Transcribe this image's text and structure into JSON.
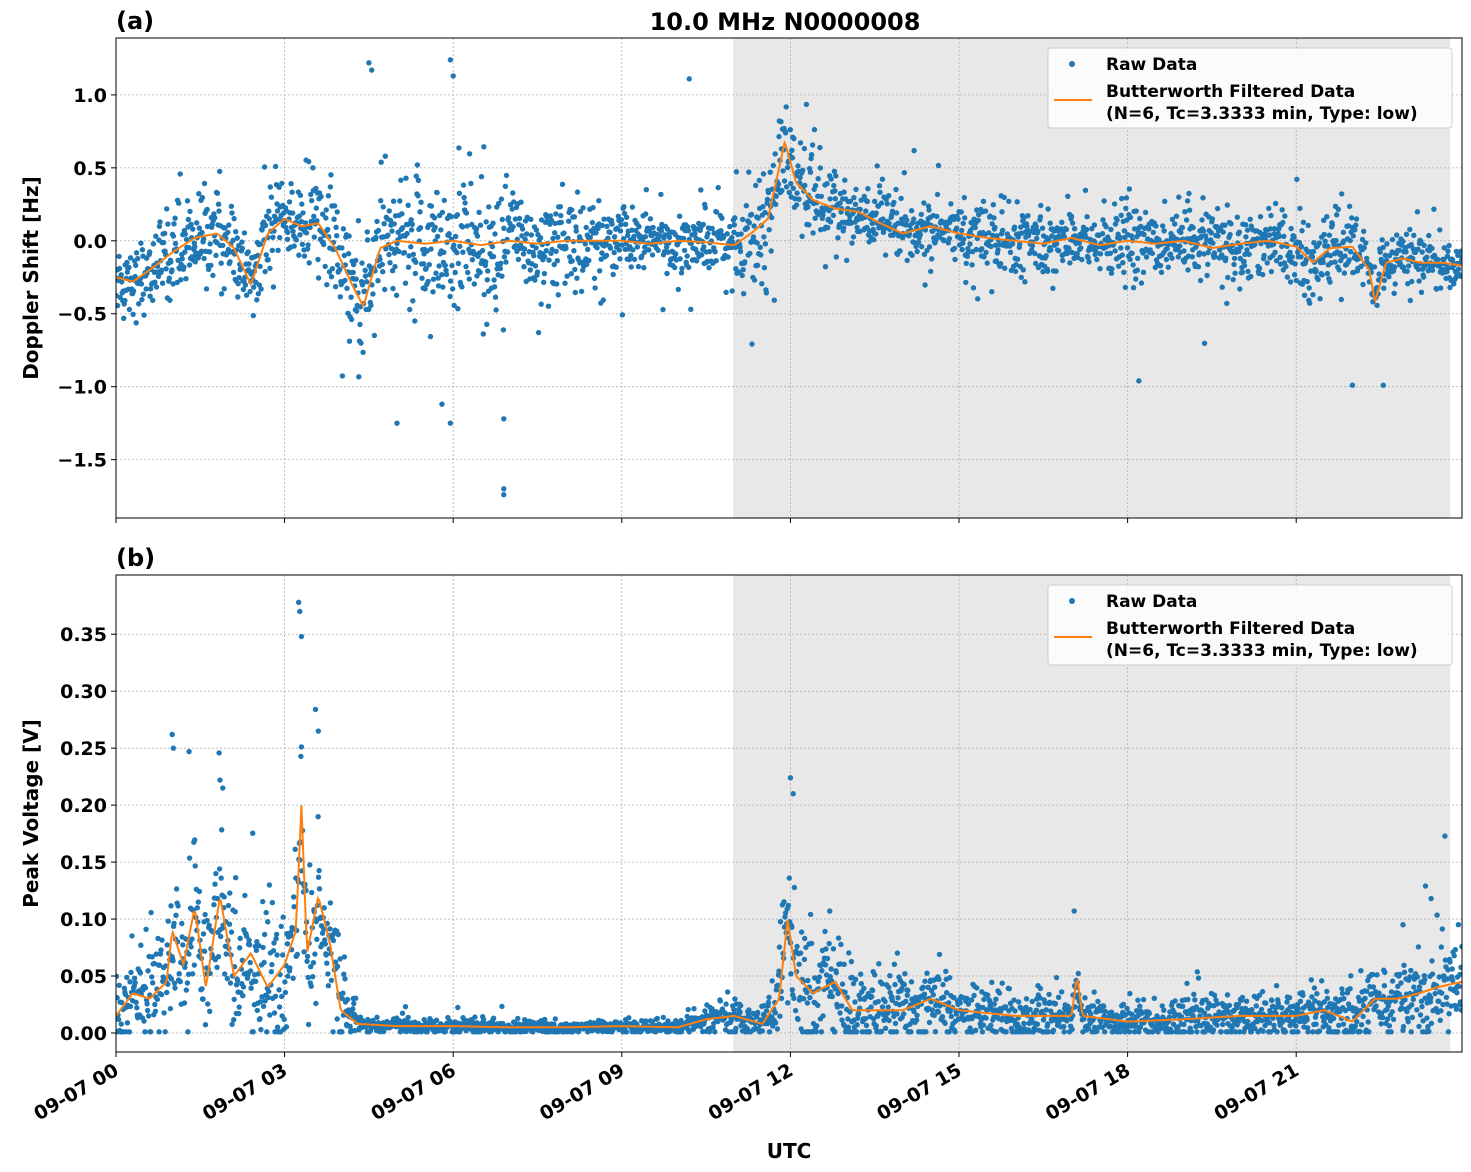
{
  "title": "10.0 MHz N0000008",
  "xlabel": "UTC",
  "x_ticks": [
    "09-07 00",
    "09-07 03",
    "09-07 06",
    "09-07 09",
    "09-07 12",
    "09-07 15",
    "09-07 18",
    "09-07 21"
  ],
  "x_tick_hours": [
    0,
    3,
    6,
    9,
    12,
    15,
    18,
    21
  ],
  "xlim_hours": [
    0,
    23.95
  ],
  "shaded_region_hours": [
    10.98,
    23.74
  ],
  "colors": {
    "raw": "#1f77b4",
    "filtered": "#ff7f0e",
    "shade": "#e8e8e8"
  },
  "chart_data": [
    {
      "type": "scatter",
      "panel_label": "(a)",
      "ylabel": "Doppler Shift [Hz]",
      "ylim": [
        -1.9,
        1.39
      ],
      "y_ticks": [
        1.0,
        0.5,
        0.0,
        -0.5,
        -1.0,
        -1.5
      ],
      "y_tick_labels": [
        "1.0",
        "0.5",
        "0.0",
        "−0.5",
        "−1.0",
        "−1.5"
      ],
      "grid": true,
      "legend": {
        "placement": "top-right",
        "entries": [
          "Raw Data",
          "Butterworth Filtered Data",
          "(N=6, Tc=3.3333 min, Type: low)"
        ]
      },
      "filtered": {
        "name": "Butterworth Filtered Data",
        "x": [
          0,
          0.3,
          0.6,
          1,
          1.4,
          1.8,
          2.1,
          2.4,
          2.7,
          3,
          3.3,
          3.6,
          3.9,
          4.2,
          4.4,
          4.7,
          5,
          5.5,
          6,
          6.5,
          7,
          7.5,
          8,
          8.5,
          9,
          9.5,
          10,
          10.5,
          11,
          11.3,
          11.6,
          11.8,
          11.9,
          12.1,
          12.4,
          12.8,
          13.2,
          13.6,
          14,
          14.5,
          15,
          15.5,
          16,
          16.5,
          17,
          17.5,
          18,
          18.5,
          19,
          19.5,
          20,
          20.5,
          21,
          21.3,
          21.6,
          22,
          22.3,
          22.4,
          22.6,
          22.9,
          23.2,
          23.6,
          23.95
        ],
        "y": [
          -0.25,
          -0.28,
          -0.2,
          -0.08,
          0.02,
          0.05,
          -0.05,
          -0.3,
          0.05,
          0.15,
          0.1,
          0.12,
          -0.05,
          -0.3,
          -0.45,
          -0.05,
          0.0,
          -0.02,
          0.0,
          -0.03,
          0.0,
          -0.02,
          0.0,
          0.0,
          0.0,
          -0.02,
          0.0,
          -0.01,
          -0.03,
          0.05,
          0.15,
          0.5,
          0.68,
          0.4,
          0.28,
          0.22,
          0.2,
          0.12,
          0.05,
          0.1,
          0.05,
          0.02,
          0.0,
          -0.02,
          0.02,
          -0.03,
          0.0,
          -0.02,
          0.0,
          -0.05,
          -0.02,
          0.0,
          -0.04,
          -0.15,
          -0.05,
          -0.04,
          -0.2,
          -0.42,
          -0.15,
          -0.12,
          -0.15,
          -0.15,
          -0.17
        ]
      },
      "raw_spread": {
        "x": [
          0,
          2,
          3,
          3.8,
          4.5,
          6,
          7,
          8,
          9,
          10,
          10.8,
          11.5,
          12,
          13,
          15,
          18,
          20,
          22,
          23,
          23.95
        ],
        "sd": [
          0.12,
          0.14,
          0.1,
          0.18,
          0.22,
          0.22,
          0.22,
          0.16,
          0.1,
          0.1,
          0.12,
          0.2,
          0.16,
          0.12,
          0.1,
          0.12,
          0.11,
          0.12,
          0.09,
          0.07
        ]
      },
      "raw_outliers": [
        [
          4.5,
          1.22
        ],
        [
          4.55,
          1.17
        ],
        [
          5.0,
          -1.25
        ],
        [
          5.95,
          1.24
        ],
        [
          5.95,
          -1.25
        ],
        [
          6.0,
          1.13
        ],
        [
          6.9,
          -1.7
        ],
        [
          6.9,
          -1.74
        ],
        [
          6.9,
          -1.22
        ],
        [
          10.2,
          1.11
        ],
        [
          5.8,
          -1.12
        ],
        [
          18.2,
          -0.96
        ],
        [
          22.0,
          -0.99
        ],
        [
          22.55,
          -0.99
        ]
      ]
    },
    {
      "type": "scatter",
      "panel_label": "(b)",
      "ylabel": "Peak Voltage [V]",
      "ylim": [
        -0.0167,
        0.402
      ],
      "y_ticks": [
        0.0,
        0.05,
        0.1,
        0.15,
        0.2,
        0.25,
        0.3,
        0.35
      ],
      "y_tick_labels": [
        "0.00",
        "0.05",
        "0.10",
        "0.15",
        "0.20",
        "0.25",
        "0.30",
        "0.35"
      ],
      "grid": true,
      "legend": {
        "placement": "top-right",
        "entries": [
          "Raw Data",
          "Butterworth Filtered Data",
          "(N=6, Tc=3.3333 min, Type: low)"
        ]
      },
      "filtered": {
        "name": "Butterworth Filtered Data",
        "x": [
          0,
          0.3,
          0.6,
          0.9,
          1.0,
          1.2,
          1.4,
          1.6,
          1.85,
          2.1,
          2.4,
          2.7,
          3.0,
          3.2,
          3.3,
          3.4,
          3.6,
          3.8,
          4.0,
          4.3,
          5,
          6,
          7,
          8,
          9,
          10,
          10.5,
          11,
          11.5,
          11.8,
          11.95,
          12.1,
          12.4,
          12.8,
          13.1,
          13.5,
          14,
          14.5,
          15,
          16,
          17,
          17.1,
          17.2,
          18,
          19,
          20,
          21,
          21.5,
          22,
          22.4,
          22.8,
          23.2,
          23.5,
          23.95
        ],
        "y": [
          0.015,
          0.035,
          0.03,
          0.045,
          0.09,
          0.06,
          0.11,
          0.04,
          0.12,
          0.05,
          0.07,
          0.04,
          0.06,
          0.09,
          0.2,
          0.07,
          0.12,
          0.08,
          0.02,
          0.008,
          0.006,
          0.006,
          0.005,
          0.005,
          0.006,
          0.005,
          0.012,
          0.015,
          0.008,
          0.03,
          0.1,
          0.05,
          0.035,
          0.045,
          0.02,
          0.02,
          0.02,
          0.03,
          0.02,
          0.015,
          0.015,
          0.05,
          0.015,
          0.01,
          0.012,
          0.015,
          0.015,
          0.02,
          0.01,
          0.03,
          0.03,
          0.035,
          0.04,
          0.045
        ]
      },
      "raw_spread": {
        "x": [
          0,
          3,
          4,
          4.3,
          10,
          11,
          11.5,
          12,
          13,
          15,
          18,
          22,
          23.95
        ],
        "sd": [
          0.02,
          0.035,
          0.02,
          0.003,
          0.003,
          0.008,
          0.005,
          0.03,
          0.02,
          0.012,
          0.008,
          0.012,
          0.02
        ]
      },
      "raw_outliers": [
        [
          1.0,
          0.262
        ],
        [
          1.02,
          0.25
        ],
        [
          1.3,
          0.247
        ],
        [
          1.85,
          0.222
        ],
        [
          1.9,
          0.215
        ],
        [
          3.25,
          0.378
        ],
        [
          3.27,
          0.37
        ],
        [
          3.3,
          0.348
        ],
        [
          3.55,
          0.284
        ],
        [
          3.6,
          0.265
        ],
        [
          12.0,
          0.224
        ],
        [
          12.05,
          0.21
        ],
        [
          17.05,
          0.107
        ],
        [
          22.9,
          0.095
        ],
        [
          23.3,
          0.129
        ],
        [
          23.4,
          0.118
        ],
        [
          12.7,
          0.107
        ]
      ]
    }
  ]
}
